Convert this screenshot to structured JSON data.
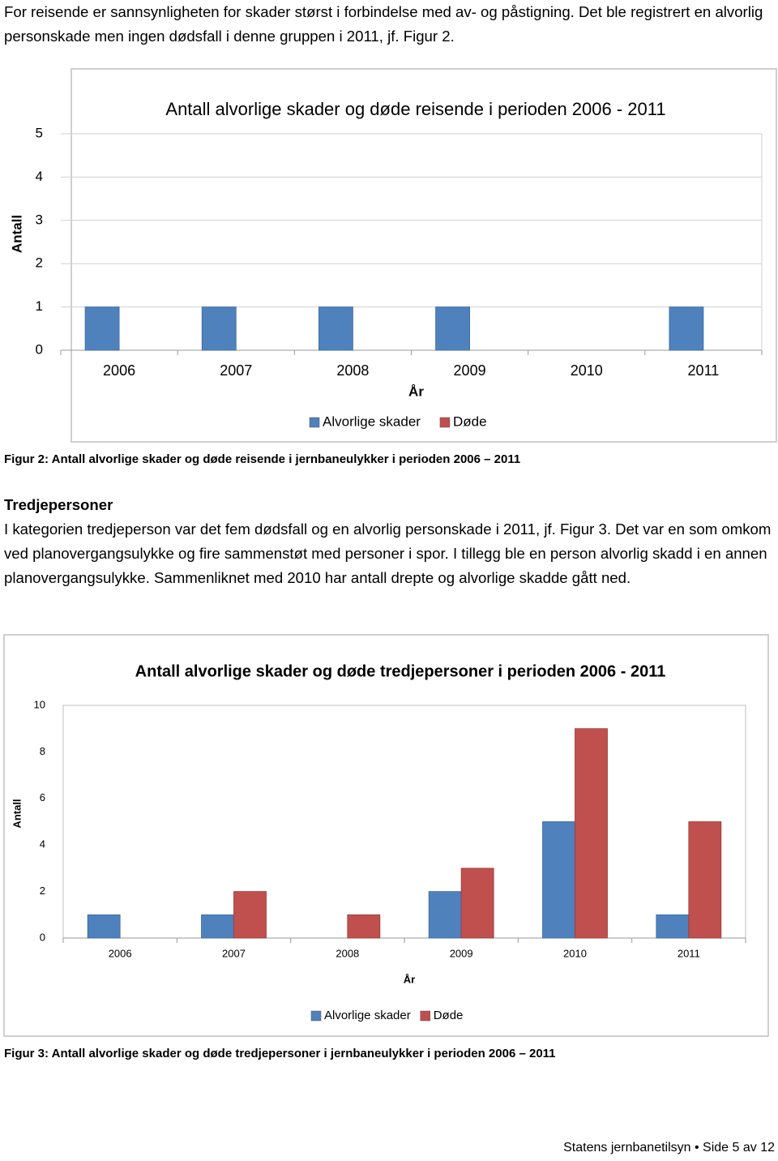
{
  "intro": "For reisende er sannsynligheten for skader størst i forbindelse med av- og påstigning. Det ble registrert en alvorlig personskade men ingen dødsfall i denne gruppen i 2011, jf. Figur 2.",
  "chart_data": [
    {
      "type": "bar",
      "title": "Antall alvorlige skader og døde reisende i perioden 2006 - 2011",
      "x_label": "År",
      "y_label": "Antall",
      "categories": [
        "2006",
        "2007",
        "2008",
        "2009",
        "2010",
        "2011"
      ],
      "series": [
        {
          "name": "Alvorlige skader",
          "color": "#4f81bd",
          "values": [
            1,
            1,
            1,
            1,
            0,
            1
          ]
        },
        {
          "name": "Døde",
          "color": "#c0504d",
          "values": [
            0,
            0,
            0,
            0,
            0,
            0
          ]
        }
      ],
      "ylim": [
        0,
        5
      ],
      "yticks": [
        0,
        1,
        2,
        3,
        4,
        5
      ],
      "grid": true
    },
    {
      "type": "bar",
      "title": "Antall alvorlige skader og døde tredjepersoner i perioden 2006 - 2011",
      "x_label": "År",
      "y_label": "Antall",
      "categories": [
        "2006",
        "2007",
        "2008",
        "2009",
        "2010",
        "2011"
      ],
      "series": [
        {
          "name": "Alvorlige skader",
          "color": "#4f81bd",
          "values": [
            1,
            1,
            0,
            2,
            5,
            1
          ]
        },
        {
          "name": "Døde",
          "color": "#c0504d",
          "values": [
            0,
            2,
            1,
            3,
            9,
            5
          ]
        }
      ],
      "ylim": [
        0,
        10
      ],
      "yticks": [
        0,
        2,
        4,
        6,
        8,
        10
      ],
      "grid": false
    }
  ],
  "figure_captions": [
    "Figur 2: Antall alvorlige skader og døde reisende i jernbaneulykker i perioden 2006 – 2011",
    "Figur 3: Antall alvorlige skader og døde tredjepersoner i jernbaneulykker i perioden 2006 – 2011"
  ],
  "section": {
    "heading": "Tredjepersoner",
    "text": "I kategorien tredjeperson var det fem dødsfall og en alvorlig personskade i 2011, jf. Figur 3. Det var en som omkom ved planovergangsulykke og fire sammenstøt med personer i spor. I tillegg ble en person alvorlig skadd i en annen planovergangsulykke. Sammenliknet med 2010 har antall drepte og alvorlige skadde gått ned."
  },
  "footer": "Statens jernbanetilsyn • Side 5 av 12"
}
